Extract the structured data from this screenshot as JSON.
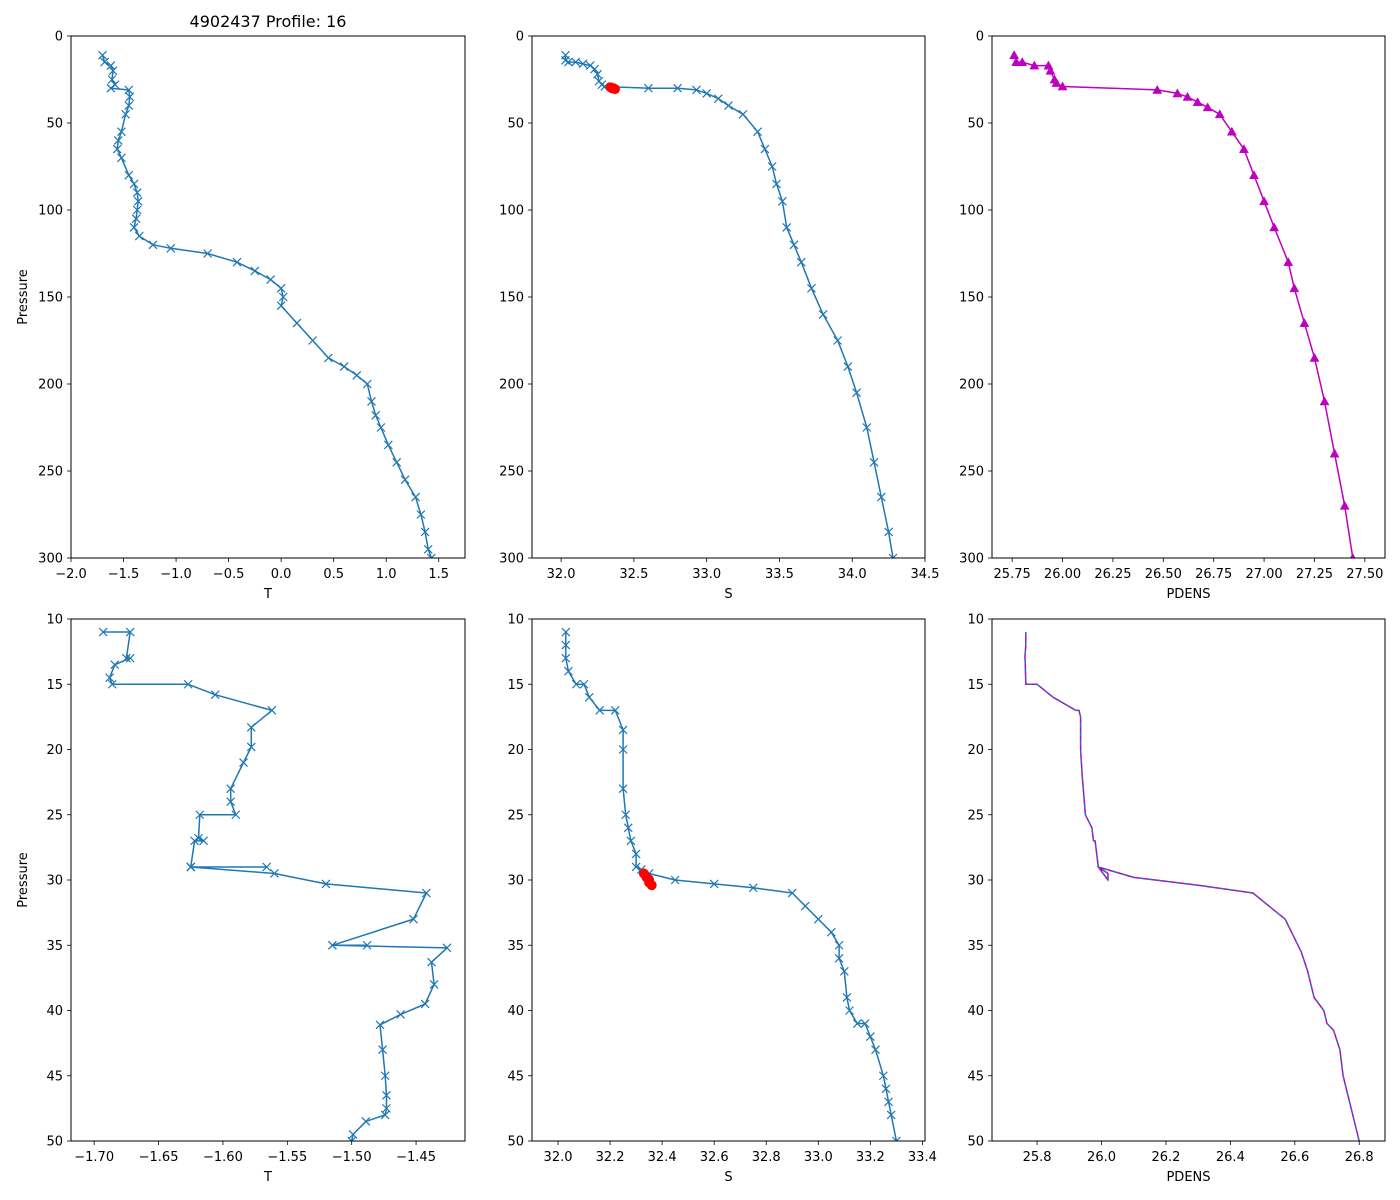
{
  "figure": {
    "title": "4902437 Profile: 16"
  },
  "colors": {
    "series": "#1f77b4",
    "highlight": "#ff0000",
    "density": "#bf00bf",
    "dashed": "#1f77b4"
  },
  "chart_data": [
    {
      "id": "top-left",
      "type": "line",
      "title": "4902437 Profile: 16",
      "xlabel": "T",
      "ylabel": "Pressure",
      "xlim": [
        -2.0,
        1.75
      ],
      "ylim": [
        300,
        0
      ],
      "xticks": [
        -2.0,
        -1.5,
        -1.0,
        -0.5,
        0.0,
        0.5,
        1.0,
        1.5
      ],
      "xtick_labels": [
        "−2.0",
        "−1.5",
        "−1.0",
        "−0.5",
        "0.0",
        "0.5",
        "1.0",
        "1.5"
      ],
      "yticks": [
        0,
        50,
        100,
        150,
        200,
        250,
        300
      ],
      "ytick_labels": [
        "0",
        "50",
        "100",
        "150",
        "200",
        "250",
        "300"
      ],
      "series": [
        {
          "name": "T",
          "marker": "x",
          "color_key": "series",
          "x": [
            -1.7,
            -1.68,
            -1.62,
            -1.6,
            -1.61,
            -1.58,
            -1.62,
            -1.45,
            -1.44,
            -1.45,
            -1.48,
            -1.52,
            -1.55,
            -1.56,
            -1.52,
            -1.45,
            -1.4,
            -1.37,
            -1.36,
            -1.37,
            -1.38,
            -1.4,
            -1.35,
            -1.22,
            -1.05,
            -0.7,
            -0.42,
            -0.25,
            -0.1,
            0.0,
            0.02,
            0.0,
            0.15,
            0.3,
            0.45,
            0.6,
            0.72,
            0.82,
            0.86,
            0.9,
            0.95,
            1.02,
            1.1,
            1.18,
            1.28,
            1.33,
            1.37,
            1.4,
            1.43
          ],
          "y": [
            11,
            15,
            17,
            20,
            25,
            28,
            30,
            31,
            35,
            40,
            45,
            55,
            60,
            65,
            70,
            80,
            85,
            90,
            95,
            100,
            105,
            110,
            115,
            120,
            122,
            125,
            130,
            135,
            140,
            145,
            150,
            155,
            165,
            175,
            185,
            190,
            195,
            200,
            210,
            218,
            225,
            235,
            245,
            255,
            265,
            275,
            285,
            295,
            300
          ]
        }
      ]
    },
    {
      "id": "top-middle",
      "type": "line",
      "xlabel": "S",
      "ylabel": "",
      "xlim": [
        31.8,
        34.5
      ],
      "ylim": [
        300,
        0
      ],
      "xticks": [
        32.0,
        32.5,
        33.0,
        33.5,
        34.0,
        34.5
      ],
      "xtick_labels": [
        "32.0",
        "32.5",
        "33.0",
        "33.5",
        "34.0",
        "34.5"
      ],
      "yticks": [
        0,
        50,
        100,
        150,
        200,
        250,
        300
      ],
      "ytick_labels": [
        "0",
        "50",
        "100",
        "150",
        "200",
        "250",
        "300"
      ],
      "series": [
        {
          "name": "S",
          "marker": "x",
          "color_key": "series",
          "x": [
            32.03,
            32.03,
            32.05,
            32.1,
            32.15,
            32.2,
            32.23,
            32.25,
            32.26,
            32.28,
            32.3,
            32.6,
            32.8,
            32.93,
            33.0,
            33.08,
            33.15,
            33.25,
            33.35,
            33.4,
            33.45,
            33.48,
            33.52,
            33.55,
            33.6,
            33.65,
            33.72,
            33.8,
            33.9,
            33.97,
            34.03,
            34.1,
            34.15,
            34.2,
            34.25,
            34.28
          ],
          "y": [
            11,
            14,
            15,
            15,
            16,
            17,
            19,
            22,
            26,
            28,
            29,
            30,
            30,
            31,
            33,
            36,
            40,
            45,
            55,
            65,
            75,
            85,
            95,
            110,
            120,
            130,
            145,
            160,
            175,
            190,
            205,
            225,
            245,
            265,
            285,
            300
          ]
        },
        {
          "name": "mixed-layer",
          "marker": "o",
          "color_key": "highlight",
          "x": [
            32.34,
            32.35,
            32.36,
            32.37
          ],
          "y": [
            29.5,
            30,
            30,
            30.5
          ]
        }
      ]
    },
    {
      "id": "top-right",
      "type": "line",
      "xlabel": "PDENS",
      "ylabel": "",
      "xlim": [
        25.65,
        27.6
      ],
      "ylim": [
        300,
        0
      ],
      "xticks": [
        25.75,
        26.0,
        26.25,
        26.5,
        26.75,
        27.0,
        27.25,
        27.5
      ],
      "xtick_labels": [
        "25.75",
        "26.00",
        "26.25",
        "26.50",
        "26.75",
        "27.00",
        "27.25",
        "27.50"
      ],
      "yticks": [
        0,
        50,
        100,
        150,
        200,
        250,
        300
      ],
      "ytick_labels": [
        "0",
        "50",
        "100",
        "150",
        "200",
        "250",
        "300"
      ],
      "series": [
        {
          "name": "PDENS",
          "marker": "^",
          "color_key": "density",
          "x": [
            25.76,
            25.77,
            25.8,
            25.86,
            25.93,
            25.94,
            25.96,
            25.97,
            26.0,
            26.47,
            26.57,
            26.62,
            26.67,
            26.72,
            26.78,
            26.84,
            26.9,
            26.95,
            27.0,
            27.05,
            27.12,
            27.15,
            27.2,
            27.25,
            27.3,
            27.35,
            27.4,
            27.44
          ],
          "y": [
            11,
            15,
            15,
            17,
            17,
            20,
            25,
            27,
            29,
            31,
            33,
            35,
            38,
            41,
            45,
            55,
            65,
            80,
            95,
            110,
            130,
            145,
            165,
            185,
            210,
            240,
            270,
            300
          ]
        }
      ]
    },
    {
      "id": "bottom-left",
      "type": "line",
      "xlabel": "T",
      "ylabel": "Pressure",
      "xlim": [
        -1.718,
        -1.412
      ],
      "ylim": [
        50,
        10
      ],
      "xticks": [
        -1.7,
        -1.65,
        -1.6,
        -1.55,
        -1.5,
        -1.45
      ],
      "xtick_labels": [
        "−1.70",
        "−1.65",
        "−1.60",
        "−1.55",
        "−1.50",
        "−1.45"
      ],
      "yticks": [
        10,
        15,
        20,
        25,
        30,
        35,
        40,
        45,
        50
      ],
      "ytick_labels": [
        "10",
        "15",
        "20",
        "25",
        "30",
        "35",
        "40",
        "45",
        "50"
      ],
      "series": [
        {
          "name": "T",
          "marker": "x",
          "color_key": "series",
          "x": [
            -1.693,
            -1.672,
            -1.675,
            -1.672,
            -1.684,
            -1.688,
            -1.686,
            -1.627,
            -1.606,
            -1.562,
            -1.578,
            -1.578,
            -1.584,
            -1.594,
            -1.594,
            -1.59,
            -1.618,
            -1.619,
            -1.615,
            -1.622,
            -1.625,
            -1.566,
            -1.625,
            -1.625,
            -1.56,
            -1.52,
            -1.442,
            -1.452,
            -1.515,
            -1.488,
            -1.515,
            -1.426,
            -1.438,
            -1.436,
            -1.443,
            -1.462,
            -1.478,
            -1.476,
            -1.474,
            -1.473,
            -1.473,
            -1.474,
            -1.489,
            -1.499,
            -1.5
          ],
          "y": [
            11,
            11,
            13,
            13,
            13.5,
            14.5,
            15,
            15,
            15.8,
            17,
            18.3,
            19.8,
            21,
            23,
            24,
            25,
            25,
            26.8,
            27,
            27,
            29,
            29,
            29,
            29,
            29.5,
            30.3,
            31,
            33,
            35,
            35,
            35,
            35.2,
            36.3,
            38,
            39.5,
            40.3,
            41.1,
            43,
            45,
            46.5,
            47.5,
            48,
            48.5,
            49.5,
            50
          ]
        }
      ]
    },
    {
      "id": "bottom-middle",
      "type": "line",
      "xlabel": "S",
      "ylabel": "",
      "xlim": [
        31.9,
        33.41
      ],
      "ylim": [
        50,
        10
      ],
      "xticks": [
        32.0,
        32.2,
        32.4,
        32.6,
        32.8,
        33.0,
        33.2,
        33.4
      ],
      "xtick_labels": [
        "32.0",
        "32.2",
        "32.4",
        "32.6",
        "32.8",
        "33.0",
        "33.2",
        "33.4"
      ],
      "yticks": [
        10,
        15,
        20,
        25,
        30,
        35,
        40,
        45,
        50
      ],
      "ytick_labels": [
        "10",
        "15",
        "20",
        "25",
        "30",
        "35",
        "40",
        "45",
        "50"
      ],
      "series": [
        {
          "name": "S",
          "marker": "x",
          "color_key": "series",
          "x": [
            32.03,
            32.03,
            32.03,
            32.04,
            32.07,
            32.1,
            32.12,
            32.16,
            32.22,
            32.25,
            32.25,
            32.25,
            32.26,
            32.27,
            32.28,
            32.3,
            32.3,
            32.32,
            32.35,
            32.45,
            32.6,
            32.75,
            32.9,
            32.95,
            33.0,
            33.05,
            33.08,
            33.08,
            33.1,
            33.11,
            33.12,
            33.15,
            33.18,
            33.2,
            33.22,
            33.25,
            33.26,
            33.27,
            33.28,
            33.3
          ],
          "y": [
            11,
            12,
            13,
            14,
            15,
            15,
            16,
            17,
            17,
            18.5,
            20,
            23,
            25,
            26,
            27,
            28,
            29,
            29.2,
            29.5,
            30,
            30.3,
            30.6,
            31,
            32,
            33,
            34,
            35,
            36,
            37,
            39,
            40,
            41,
            41,
            42,
            43,
            45,
            46,
            47,
            48,
            50
          ]
        },
        {
          "name": "mixed-layer",
          "marker": "o",
          "color_key": "highlight",
          "x": [
            32.33,
            32.34,
            32.35,
            32.35,
            32.36
          ],
          "y": [
            29.5,
            29.8,
            30,
            30.2,
            30.4
          ]
        }
      ]
    },
    {
      "id": "bottom-right",
      "type": "line",
      "xlabel": "PDENS",
      "ylabel": "",
      "xlim": [
        25.66,
        26.88
      ],
      "ylim": [
        50,
        10
      ],
      "xticks": [
        25.8,
        26.0,
        26.2,
        26.4,
        26.6,
        26.8
      ],
      "xtick_labels": [
        "25.8",
        "26.0",
        "26.2",
        "26.4",
        "26.6",
        "26.8"
      ],
      "yticks": [
        10,
        15,
        20,
        25,
        30,
        35,
        40,
        45,
        50
      ],
      "ytick_labels": [
        "10",
        "15",
        "20",
        "25",
        "30",
        "35",
        "40",
        "45",
        "50"
      ],
      "series": [
        {
          "name": "PDENS",
          "marker": "none",
          "color_key": "density",
          "dashed_overlay": true,
          "x": [
            25.765,
            25.765,
            25.762,
            25.763,
            25.765,
            25.8,
            25.85,
            25.92,
            25.93,
            25.935,
            25.935,
            25.94,
            25.95,
            25.97,
            25.975,
            25.98,
            25.99,
            26.02,
            26.02,
            25.99,
            26.1,
            26.3,
            26.47,
            26.52,
            26.57,
            26.61,
            26.62,
            26.64,
            26.66,
            26.69,
            26.7,
            26.72,
            26.74,
            26.75,
            26.8
          ],
          "y": [
            11,
            12,
            13,
            13.2,
            15,
            15,
            16,
            17,
            17,
            17.5,
            20,
            22,
            25,
            26,
            27,
            27,
            29,
            29.5,
            30,
            29,
            29.8,
            30.4,
            31,
            32,
            33,
            35,
            35.5,
            37,
            39,
            40,
            41,
            41.5,
            43,
            45,
            50
          ]
        }
      ]
    }
  ]
}
